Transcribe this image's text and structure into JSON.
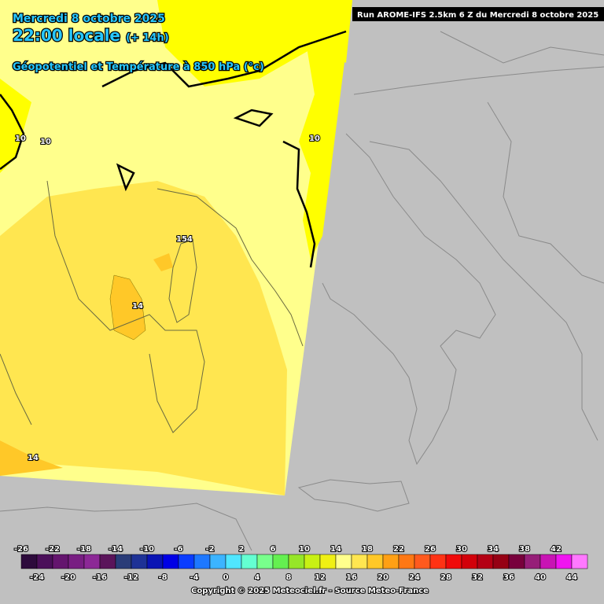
{
  "header": {
    "date": "Mercredi 8 octobre 2025",
    "time": "22:00 locale",
    "offset": "(+ 14h)",
    "field": "Géopotentiel et Température à 850 hPa (°c)"
  },
  "run": "Run AROME-IFS 2.5km 6 Z du Mercredi 8 octobre 2025",
  "contour_labels": [
    "10",
    "10",
    "10",
    "154",
    "14",
    "14"
  ],
  "legend": {
    "ticks": [
      -26,
      -24,
      -22,
      -20,
      -18,
      -16,
      -14,
      -12,
      -10,
      -8,
      -6,
      -4,
      -2,
      0,
      2,
      4,
      6,
      8,
      10,
      12,
      14,
      16,
      18,
      20,
      22,
      24,
      26,
      28,
      30,
      32,
      34,
      36,
      38,
      40,
      42,
      44
    ],
    "colors": [
      "#2d0a3c",
      "#4b0f5a",
      "#64146e",
      "#781e82",
      "#8c2896",
      "#5a145a",
      "#2a3c78",
      "#1e3296",
      "#0a14b4",
      "#0000e6",
      "#0a3cff",
      "#1e78ff",
      "#3cb4ff",
      "#50e6ff",
      "#64ffd2",
      "#78ff8c",
      "#64f050",
      "#96e628",
      "#c8f014",
      "#f0f014",
      "#ffff8c",
      "#ffe650",
      "#ffc828",
      "#ffa014",
      "#ff7814",
      "#ff5a1e",
      "#ff3214",
      "#f00a0a",
      "#d2000a",
      "#b40014",
      "#960014",
      "#78003c",
      "#961e78",
      "#c814b4",
      "#f014f0",
      "#ff78ff"
    ]
  },
  "copyright": "Copyright © 2025 Meteociel.fr - Source Meteo-France"
}
